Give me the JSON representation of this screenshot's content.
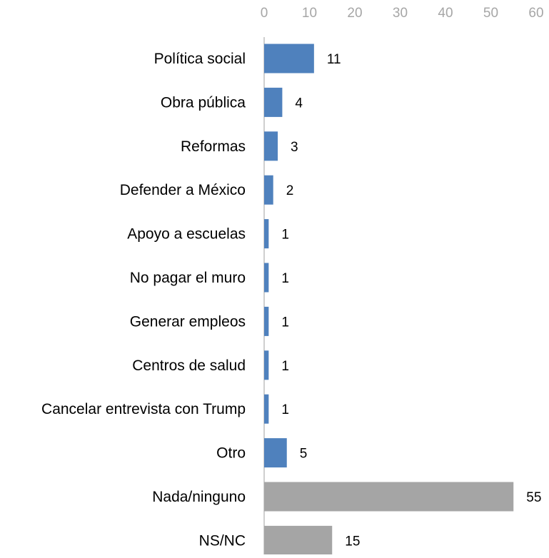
{
  "chart_data": {
    "type": "bar",
    "orientation": "horizontal",
    "title": "",
    "xlabel": "",
    "ylabel": "",
    "xlim": [
      0,
      60
    ],
    "x_ticks": [
      0,
      10,
      20,
      30,
      40,
      50,
      60
    ],
    "x_axis_position": "top",
    "grid": false,
    "legend": "none",
    "categories": [
      "Política social",
      "Obra pública",
      "Reformas",
      "Defender a México",
      "Apoyo a escuelas",
      "No pagar el muro",
      "Generar empleos",
      "Centros de salud",
      "Cancelar entrevista con Trump",
      "Otro",
      "Nada/ninguno",
      "NS/NC"
    ],
    "values": [
      11,
      4,
      3,
      2,
      1,
      1,
      1,
      1,
      1,
      5,
      55,
      15
    ],
    "bar_colors": [
      "#4f81bd",
      "#4f81bd",
      "#4f81bd",
      "#4f81bd",
      "#4f81bd",
      "#4f81bd",
      "#4f81bd",
      "#4f81bd",
      "#4f81bd",
      "#4f81bd",
      "#a5a5a5",
      "#a5a5a5"
    ],
    "data_labels": [
      "11",
      "4",
      "3",
      "2",
      "1",
      "1",
      "1",
      "1",
      "1",
      "5",
      "55",
      "15"
    ],
    "tick_label_color": "#a6a6a6",
    "axis_line_color": "#bfbfbf",
    "label_color": "#000000"
  }
}
